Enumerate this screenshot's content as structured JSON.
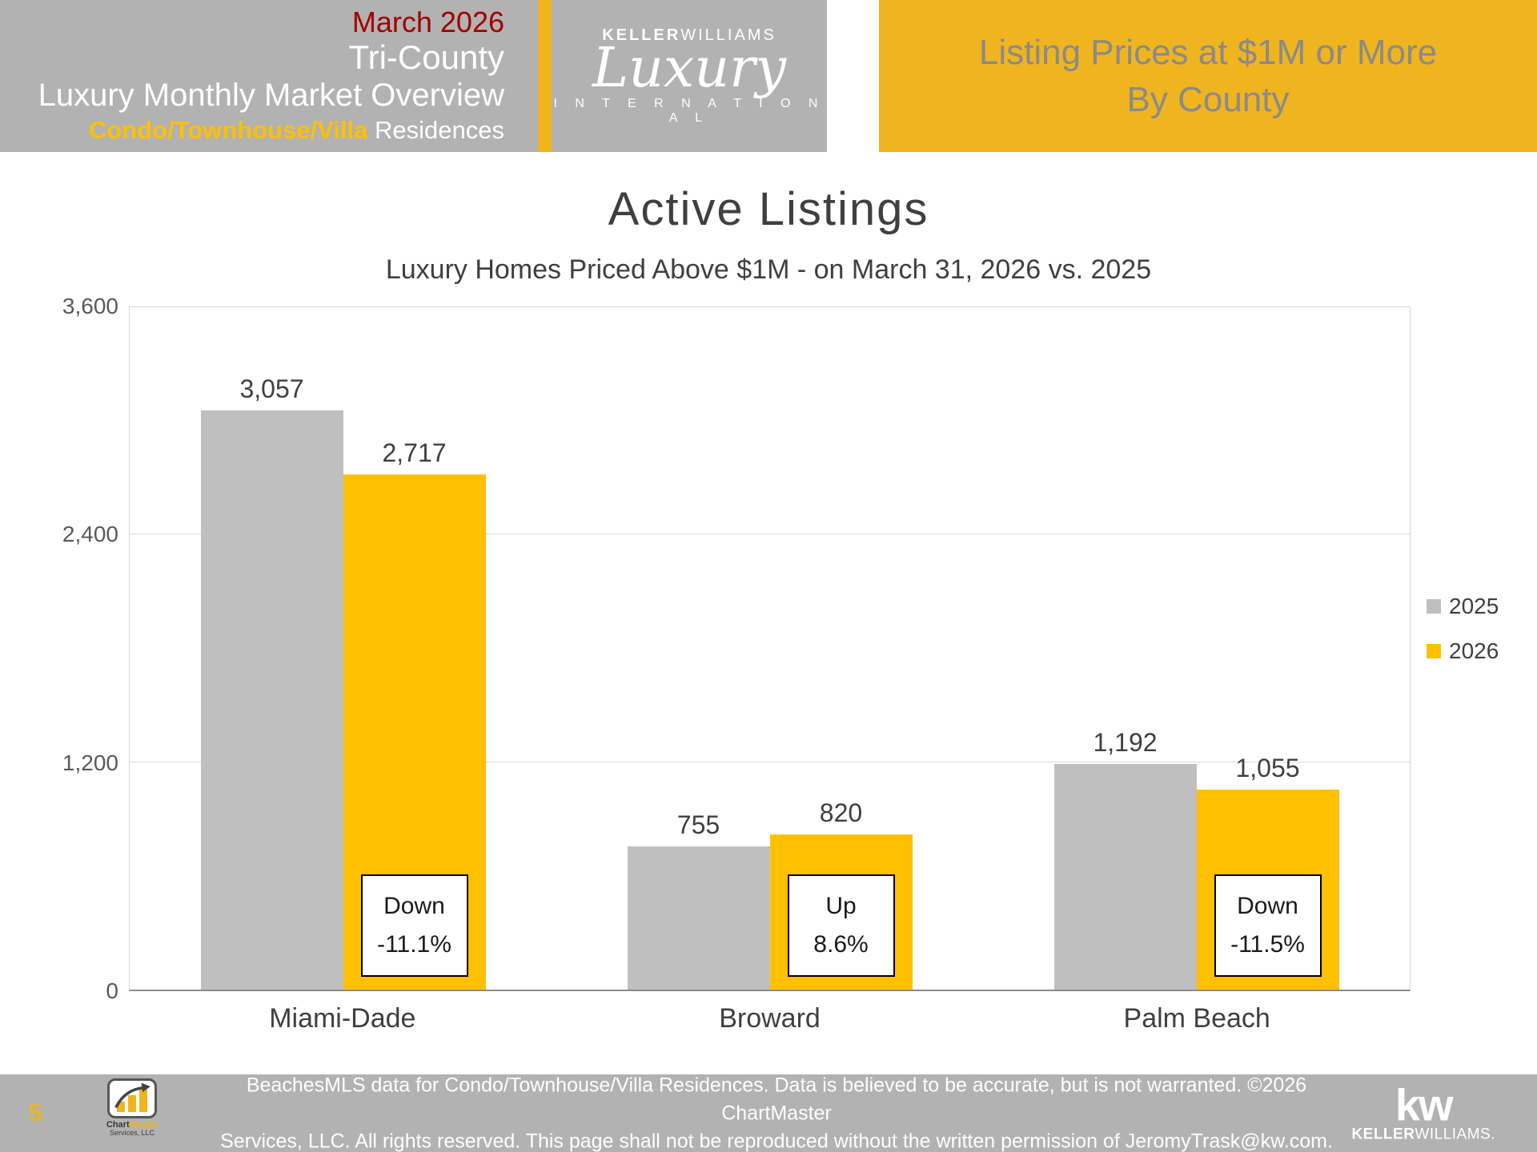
{
  "header": {
    "date": "March 2026",
    "region": "Tri-County",
    "report_title": "Luxury Monthly Market Overview",
    "property_type_highlight": "Condo/Townhouse/Villa",
    "property_type_rest": " Residences",
    "logo": {
      "keller": "KELLER",
      "williams": "WILLIAMS",
      "script": "Luxury",
      "international": "I N T E R N A T I O N A L"
    },
    "right_title_line1": "Listing Prices at $1M or More",
    "right_title_line2": "By County"
  },
  "chart_data": {
    "type": "bar",
    "title": "Active Listings",
    "subtitle": "Luxury Homes Priced Above $1M - on March 31,  2026 vs. 2025",
    "categories": [
      "Miami-Dade",
      "Broward",
      "Palm Beach"
    ],
    "series": [
      {
        "name": "2025",
        "color": "#BFBFBF",
        "values": [
          3057,
          755,
          1192
        ]
      },
      {
        "name": "2026",
        "color": "#FFC000",
        "values": [
          2717,
          820,
          1055
        ]
      }
    ],
    "annotations": [
      {
        "direction": "Down",
        "percent": "-11.1%"
      },
      {
        "direction": "Up",
        "percent": "8.6%"
      },
      {
        "direction": "Down",
        "percent": "-11.5%"
      }
    ],
    "ylim": [
      0,
      3600
    ],
    "yticks": [
      "0",
      "1,200",
      "2,400",
      "3,600"
    ],
    "grid": true,
    "legend_position": "right"
  },
  "footer": {
    "page_number": "5",
    "disclaimer_line1": "BeachesMLS data for Condo/Townhouse/Villa Residences.  Data is believed to be accurate, but is not warranted.   ©2026  ChartMaster",
    "disclaimer_line2": "Services, LLC.  All rights reserved. This page shall not be reproduced without the written permission of JeromyTrask@kw.com.",
    "chartmaster_logo": {
      "part1": "Chart",
      "part2": "Master",
      "line2": "Services, LLC"
    },
    "kw_logo": {
      "mark": "kw",
      "keller": "KELLER",
      "williams": "WILLIAMS."
    }
  },
  "colors": {
    "band_gray": "#B2B2B2",
    "header_gold": "#F0B41E",
    "bar_gray": "#BFBFBF",
    "bar_gold": "#FFC000",
    "accent_red": "#A00000"
  }
}
